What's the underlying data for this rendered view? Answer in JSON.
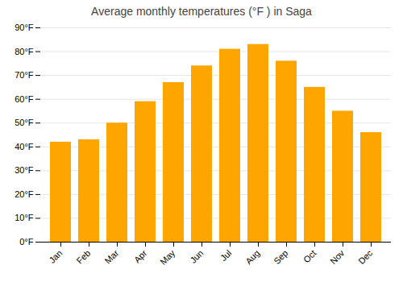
{
  "chart_data": {
    "type": "bar",
    "title": "Average monthly temperatures (°F ) in Saga",
    "categories": [
      "Jan",
      "Feb",
      "Mar",
      "Apr",
      "May",
      "Jun",
      "Jul",
      "Aug",
      "Sep",
      "Oct",
      "Nov",
      "Dec"
    ],
    "values": [
      42,
      43,
      50,
      59,
      67,
      74,
      81,
      83,
      76,
      65,
      55,
      46
    ],
    "color": "#FFA500",
    "ylim": [
      0,
      90
    ],
    "yticks": [
      {
        "value": 0,
        "label": "0°F"
      },
      {
        "value": 10,
        "label": "10°F"
      },
      {
        "value": 20,
        "label": "20°F"
      },
      {
        "value": 30,
        "label": "30°F"
      },
      {
        "value": 40,
        "label": "40°F"
      },
      {
        "value": 50,
        "label": "50°F"
      },
      {
        "value": 60,
        "label": "60°F"
      },
      {
        "value": 70,
        "label": "70°F"
      },
      {
        "value": 80,
        "label": "80°F"
      },
      {
        "value": 90,
        "label": "90°F"
      }
    ],
    "grid": true
  }
}
